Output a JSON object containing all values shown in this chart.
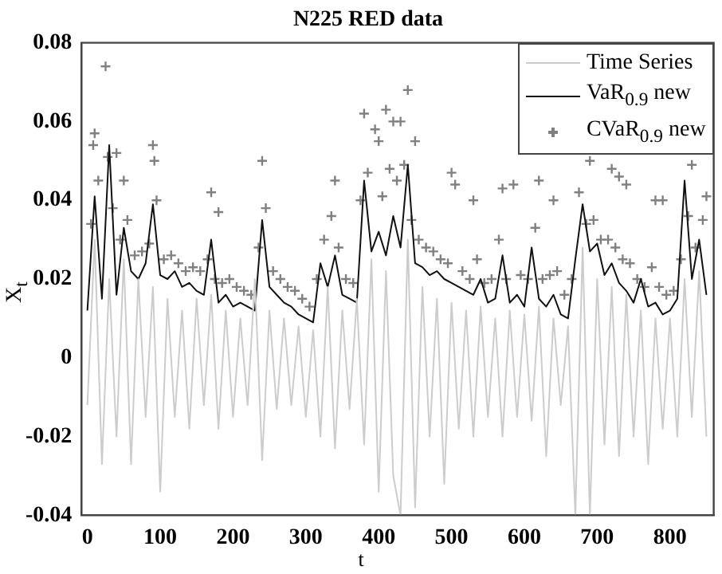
{
  "chart_data": {
    "type": "line",
    "title": "N225 RED data",
    "xlabel": "t",
    "ylabel": "X$_{t}$",
    "xlim": [
      -8,
      860
    ],
    "xticks": [
      0,
      100,
      200,
      300,
      400,
      500,
      600,
      700,
      800
    ],
    "ylim": [
      -0.04,
      0.08
    ],
    "yticks": [
      -0.04,
      -0.02,
      0,
      0.02,
      0.04,
      0.06,
      0.08
    ],
    "grid": false,
    "legend": "top right",
    "x": [
      0,
      10,
      20,
      30,
      40,
      50,
      60,
      70,
      80,
      90,
      100,
      110,
      120,
      130,
      140,
      150,
      160,
      170,
      180,
      190,
      200,
      210,
      220,
      230,
      240,
      250,
      260,
      270,
      280,
      290,
      300,
      310,
      320,
      330,
      340,
      350,
      360,
      370,
      380,
      390,
      400,
      410,
      420,
      430,
      440,
      450,
      460,
      470,
      480,
      490,
      500,
      510,
      520,
      530,
      540,
      550,
      560,
      570,
      580,
      590,
      600,
      610,
      620,
      630,
      640,
      650,
      660,
      670,
      680,
      690,
      700,
      710,
      720,
      730,
      740,
      750,
      760,
      770,
      780,
      790,
      800,
      810,
      820,
      830,
      840,
      850
    ],
    "series": [
      {
        "name": "Time Series",
        "color": "#cccccc",
        "marker": "none",
        "values": [
          -0.012,
          0.03,
          -0.027,
          0.02,
          -0.02,
          0.025,
          -0.027,
          0.02,
          -0.015,
          0.018,
          -0.034,
          0.015,
          -0.015,
          0.012,
          -0.018,
          0.015,
          -0.012,
          0.016,
          -0.018,
          0.012,
          -0.015,
          0.01,
          -0.012,
          0.02,
          -0.026,
          0.012,
          -0.013,
          0.01,
          -0.012,
          0.008,
          -0.015,
          0.007,
          -0.02,
          0.018,
          -0.023,
          0.012,
          -0.013,
          0.015,
          -0.022,
          0.025,
          -0.034,
          0.022,
          -0.03,
          -0.04,
          0.03,
          -0.038,
          0.018,
          -0.02,
          0.015,
          -0.032,
          0.014,
          -0.018,
          0.012,
          -0.02,
          0.013,
          -0.015,
          0.01,
          -0.02,
          0.012,
          -0.015,
          0.011,
          -0.016,
          0.013,
          -0.025,
          0.01,
          -0.012,
          0.008,
          -0.04,
          0.028,
          -0.04,
          0.02,
          -0.022,
          0.018,
          -0.025,
          0.016,
          -0.02,
          0.012,
          -0.027,
          0.01,
          -0.018,
          0.01,
          -0.02,
          0.02,
          -0.015,
          0.022,
          -0.02
        ]
      },
      {
        "name": "VaR$_{0.9}$ new",
        "color": "#111111",
        "marker": "none",
        "values": [
          0.012,
          0.041,
          0.015,
          0.054,
          0.016,
          0.033,
          0.022,
          0.02,
          0.024,
          0.039,
          0.021,
          0.02,
          0.022,
          0.018,
          0.019,
          0.017,
          0.016,
          0.03,
          0.014,
          0.016,
          0.013,
          0.014,
          0.013,
          0.012,
          0.035,
          0.018,
          0.016,
          0.014,
          0.013,
          0.011,
          0.01,
          0.009,
          0.024,
          0.018,
          0.026,
          0.016,
          0.015,
          0.014,
          0.045,
          0.027,
          0.032,
          0.026,
          0.036,
          0.028,
          0.049,
          0.024,
          0.023,
          0.021,
          0.022,
          0.02,
          0.019,
          0.018,
          0.017,
          0.016,
          0.02,
          0.014,
          0.015,
          0.026,
          0.014,
          0.016,
          0.013,
          0.028,
          0.015,
          0.013,
          0.016,
          0.011,
          0.01,
          0.025,
          0.039,
          0.027,
          0.029,
          0.021,
          0.024,
          0.019,
          0.017,
          0.014,
          0.02,
          0.013,
          0.014,
          0.011,
          0.012,
          0.015,
          0.045,
          0.02,
          0.03,
          0.016
        ]
      },
      {
        "name": "CVaR$_{0.9}$ new",
        "type": "scatter",
        "color": "#808080",
        "marker": "cross",
        "x": [
          5,
          8,
          10,
          15,
          25,
          28,
          35,
          40,
          45,
          50,
          55,
          65,
          75,
          85,
          90,
          92,
          95,
          105,
          115,
          125,
          135,
          145,
          155,
          165,
          170,
          175,
          180,
          185,
          195,
          205,
          215,
          225,
          235,
          240,
          245,
          255,
          265,
          275,
          285,
          295,
          305,
          315,
          325,
          335,
          340,
          345,
          355,
          365,
          375,
          380,
          385,
          395,
          400,
          405,
          410,
          415,
          420,
          425,
          430,
          435,
          440,
          445,
          450,
          455,
          465,
          475,
          485,
          495,
          500,
          505,
          515,
          525,
          530,
          535,
          545,
          555,
          565,
          570,
          575,
          585,
          595,
          605,
          615,
          620,
          625,
          635,
          640,
          645,
          655,
          665,
          675,
          685,
          690,
          695,
          705,
          715,
          720,
          725,
          730,
          735,
          740,
          745,
          755,
          765,
          775,
          780,
          785,
          790,
          795,
          805,
          815,
          825,
          830,
          835,
          845,
          850
        ],
        "values": [
          0.034,
          0.054,
          0.057,
          0.045,
          0.074,
          0.051,
          0.038,
          0.052,
          0.03,
          0.045,
          0.035,
          0.026,
          0.027,
          0.029,
          0.054,
          0.05,
          0.04,
          0.025,
          0.026,
          0.024,
          0.022,
          0.023,
          0.022,
          0.025,
          0.042,
          0.02,
          0.037,
          0.019,
          0.02,
          0.018,
          0.017,
          0.016,
          0.028,
          0.05,
          0.038,
          0.022,
          0.02,
          0.018,
          0.017,
          0.015,
          0.013,
          0.02,
          0.03,
          0.036,
          0.045,
          0.028,
          0.02,
          0.019,
          0.04,
          0.062,
          0.047,
          0.058,
          0.055,
          0.041,
          0.063,
          0.048,
          0.06,
          0.045,
          0.06,
          0.049,
          0.068,
          0.035,
          0.055,
          0.03,
          0.028,
          0.027,
          0.025,
          0.024,
          0.047,
          0.044,
          0.022,
          0.02,
          0.04,
          0.025,
          0.019,
          0.02,
          0.03,
          0.043,
          0.02,
          0.044,
          0.021,
          0.02,
          0.033,
          0.045,
          0.02,
          0.021,
          0.04,
          0.022,
          0.016,
          0.02,
          0.042,
          0.034,
          0.05,
          0.035,
          0.03,
          0.03,
          0.048,
          0.028,
          0.046,
          0.025,
          0.044,
          0.024,
          0.02,
          0.018,
          0.023,
          0.04,
          0.018,
          0.04,
          0.016,
          0.017,
          0.025,
          0.036,
          0.049,
          0.028,
          0.035,
          0.041
        ]
      }
    ]
  }
}
